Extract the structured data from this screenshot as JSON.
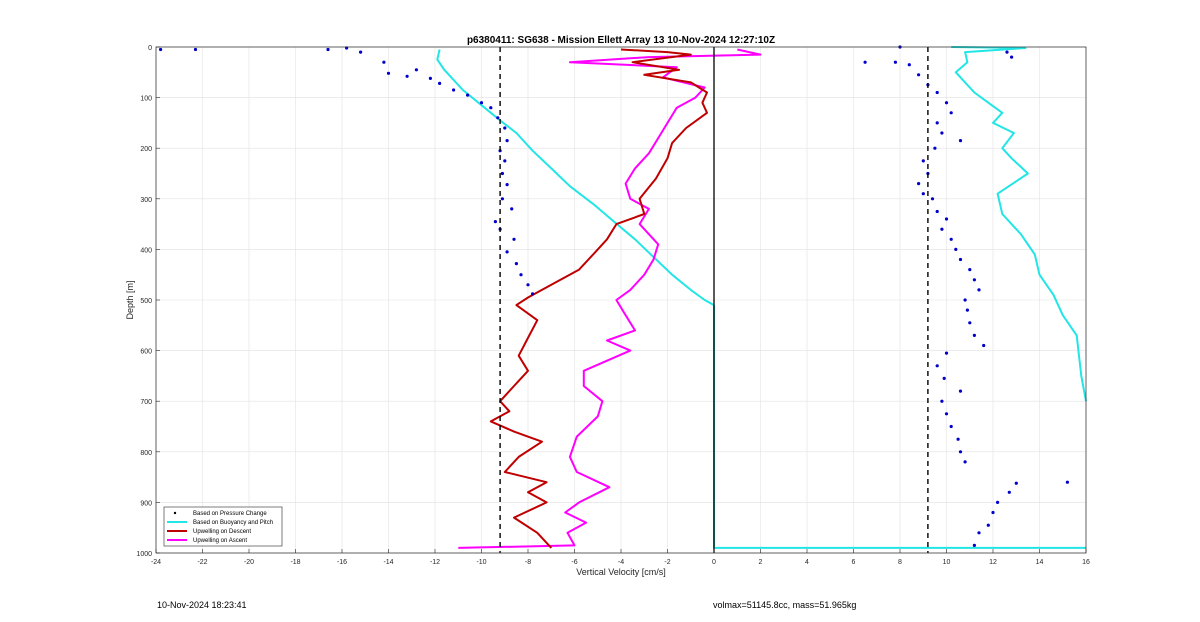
{
  "chart_data": {
    "type": "scatter",
    "title": "p6380411: SG638 - Mission Ellett Array 13 10-Nov-2024 12:27:10Z",
    "xlabel": "Vertical Velocity [cm/s]",
    "ylabel": "Depth [m]",
    "xlim": [
      -24,
      16
    ],
    "ylim": [
      0,
      1000
    ],
    "y_reversed": true,
    "grid": true,
    "xticks": [
      -24,
      -22,
      -20,
      -18,
      -16,
      -14,
      -12,
      -10,
      -8,
      -6,
      -4,
      -2,
      0,
      2,
      4,
      6,
      8,
      10,
      12,
      14,
      16
    ],
    "yticks": [
      0,
      100,
      200,
      300,
      400,
      500,
      600,
      700,
      800,
      900,
      1000
    ],
    "legend_position": "bottom-left",
    "legend": [
      {
        "label": "Based on Pressure Change",
        "color": "#000000",
        "style": "dot"
      },
      {
        "label": "Based on Buoyancy and Pitch",
        "color": "#22e5e5",
        "style": "line"
      },
      {
        "label": "Upwelling on Descent",
        "color": "#c00000",
        "style": "line"
      },
      {
        "label": "Upwelling on Ascent",
        "color": "#ff00ff",
        "style": "line"
      }
    ],
    "reference_lines": {
      "dashed_x": [
        -9.2,
        9.2
      ],
      "solid_x": [
        0
      ]
    },
    "series": [
      {
        "key": "pressure_descent",
        "color": "#0000cc",
        "style": "points",
        "points": [
          [
            -23.8,
            5
          ],
          [
            -22.3,
            5
          ],
          [
            -16.6,
            5
          ],
          [
            -15.8,
            2
          ],
          [
            -15.2,
            10
          ],
          [
            -14.2,
            30
          ],
          [
            -14.0,
            52
          ],
          [
            -13.2,
            58
          ],
          [
            -12.8,
            45
          ],
          [
            -12.2,
            62
          ],
          [
            -11.8,
            72
          ],
          [
            -11.2,
            85
          ],
          [
            -10.6,
            95
          ],
          [
            -10.0,
            110
          ],
          [
            -9.6,
            120
          ],
          [
            -9.3,
            140
          ],
          [
            -9.0,
            160
          ],
          [
            -8.9,
            185
          ],
          [
            -9.2,
            205
          ],
          [
            -9.0,
            225
          ],
          [
            -9.1,
            250
          ],
          [
            -8.9,
            272
          ],
          [
            -9.1,
            300
          ],
          [
            -8.7,
            320
          ],
          [
            -9.4,
            345
          ],
          [
            -9.2,
            360
          ],
          [
            -8.6,
            380
          ],
          [
            -8.9,
            405
          ],
          [
            -8.5,
            428
          ],
          [
            -8.3,
            450
          ],
          [
            -8.0,
            470
          ],
          [
            -7.8,
            488
          ]
        ]
      },
      {
        "key": "pressure_ascent",
        "color": "#0000cc",
        "style": "points",
        "points": [
          [
            15.2,
            860
          ],
          [
            13.0,
            862
          ],
          [
            12.7,
            880
          ],
          [
            12.2,
            900
          ],
          [
            12.0,
            920
          ],
          [
            11.8,
            945
          ],
          [
            11.4,
            960
          ],
          [
            11.2,
            985
          ],
          [
            10.8,
            820
          ],
          [
            10.6,
            800
          ],
          [
            10.5,
            775
          ],
          [
            10.2,
            750
          ],
          [
            10.0,
            725
          ],
          [
            9.8,
            700
          ],
          [
            10.6,
            680
          ],
          [
            9.9,
            655
          ],
          [
            9.6,
            630
          ],
          [
            10.0,
            605
          ],
          [
            11.6,
            590
          ],
          [
            11.2,
            570
          ],
          [
            11.0,
            545
          ],
          [
            10.9,
            520
          ],
          [
            10.8,
            500
          ],
          [
            11.4,
            480
          ],
          [
            11.2,
            460
          ],
          [
            11.0,
            440
          ],
          [
            10.6,
            420
          ],
          [
            10.4,
            400
          ],
          [
            10.2,
            380
          ],
          [
            9.8,
            360
          ],
          [
            10.0,
            340
          ],
          [
            9.6,
            325
          ],
          [
            9.4,
            300
          ],
          [
            9.0,
            290
          ],
          [
            8.8,
            270
          ],
          [
            9.2,
            250
          ],
          [
            9.0,
            225
          ],
          [
            9.5,
            200
          ],
          [
            10.6,
            185
          ],
          [
            9.8,
            170
          ],
          [
            9.6,
            150
          ],
          [
            10.2,
            130
          ],
          [
            10.0,
            110
          ],
          [
            9.6,
            90
          ],
          [
            9.2,
            75
          ],
          [
            8.8,
            55
          ],
          [
            8.4,
            35
          ],
          [
            7.8,
            30
          ],
          [
            6.5,
            30
          ],
          [
            8.0,
            0
          ],
          [
            12.6,
            10
          ],
          [
            12.8,
            20
          ]
        ]
      },
      {
        "key": "buoyancy_pitch_descent",
        "color": "#22e5e5",
        "style": "line",
        "points": [
          [
            -11.8,
            5
          ],
          [
            -11.9,
            25
          ],
          [
            -11.6,
            45
          ],
          [
            -11.2,
            65
          ],
          [
            -10.8,
            85
          ],
          [
            -10.4,
            100
          ],
          [
            -10.0,
            115
          ],
          [
            -9.6,
            130
          ],
          [
            -9.2,
            145
          ],
          [
            -8.5,
            170
          ],
          [
            -7.8,
            205
          ],
          [
            -7.0,
            240
          ],
          [
            -6.2,
            275
          ],
          [
            -5.2,
            310
          ],
          [
            -4.3,
            345
          ],
          [
            -3.4,
            380
          ],
          [
            -2.6,
            415
          ],
          [
            -1.8,
            450
          ],
          [
            -1.0,
            480
          ],
          [
            -0.4,
            500
          ],
          [
            0.0,
            510
          ],
          [
            0.0,
            990
          ],
          [
            16.0,
            990
          ]
        ]
      },
      {
        "key": "buoyancy_pitch_ascent",
        "color": "#22e5e5",
        "style": "line",
        "points": [
          [
            10.2,
            0
          ],
          [
            13.4,
            2
          ],
          [
            10.8,
            10
          ],
          [
            10.9,
            30
          ],
          [
            10.4,
            50
          ],
          [
            10.8,
            70
          ],
          [
            11.2,
            90
          ],
          [
            11.8,
            110
          ],
          [
            12.4,
            130
          ],
          [
            12.0,
            150
          ],
          [
            12.9,
            170
          ],
          [
            12.4,
            200
          ],
          [
            12.8,
            220
          ],
          [
            13.5,
            250
          ],
          [
            12.2,
            290
          ],
          [
            12.4,
            330
          ],
          [
            13.2,
            370
          ],
          [
            13.8,
            410
          ],
          [
            14.0,
            450
          ],
          [
            14.6,
            490
          ],
          [
            15.0,
            530
          ],
          [
            15.6,
            570
          ],
          [
            15.7,
            610
          ],
          [
            15.8,
            650
          ],
          [
            16.0,
            700
          ]
        ]
      },
      {
        "key": "upwelling_descent",
        "color": "#c00000",
        "style": "line",
        "points": [
          [
            -4.0,
            5
          ],
          [
            -2.0,
            10
          ],
          [
            -1.0,
            15
          ],
          [
            -3.5,
            30
          ],
          [
            -1.5,
            45
          ],
          [
            -3.0,
            55
          ],
          [
            -1.0,
            70
          ],
          [
            -0.3,
            90
          ],
          [
            -0.5,
            110
          ],
          [
            -0.3,
            130
          ],
          [
            -1.2,
            160
          ],
          [
            -1.8,
            190
          ],
          [
            -2.0,
            220
          ],
          [
            -2.5,
            260
          ],
          [
            -3.2,
            300
          ],
          [
            -3.0,
            330
          ],
          [
            -4.2,
            350
          ],
          [
            -4.6,
            380
          ],
          [
            -5.2,
            410
          ],
          [
            -5.8,
            440
          ],
          [
            -7.0,
            470
          ],
          [
            -8.0,
            495
          ],
          [
            -8.5,
            510
          ],
          [
            -7.6,
            540
          ],
          [
            -8.0,
            575
          ],
          [
            -8.4,
            610
          ],
          [
            -8.0,
            640
          ],
          [
            -8.6,
            670
          ],
          [
            -9.2,
            700
          ],
          [
            -8.8,
            720
          ],
          [
            -9.6,
            740
          ],
          [
            -8.6,
            760
          ],
          [
            -7.4,
            780
          ],
          [
            -8.4,
            810
          ],
          [
            -9.0,
            840
          ],
          [
            -7.2,
            860
          ],
          [
            -8.0,
            880
          ],
          [
            -7.2,
            900
          ],
          [
            -8.6,
            930
          ],
          [
            -7.6,
            960
          ],
          [
            -7.0,
            990
          ]
        ]
      },
      {
        "key": "upwelling_ascent",
        "color": "#ff00ff",
        "style": "line",
        "points": [
          [
            -11.0,
            990
          ],
          [
            -6.0,
            985
          ],
          [
            -6.3,
            960
          ],
          [
            -5.5,
            940
          ],
          [
            -6.4,
            920
          ],
          [
            -5.8,
            900
          ],
          [
            -4.5,
            870
          ],
          [
            -5.9,
            840
          ],
          [
            -6.2,
            810
          ],
          [
            -5.9,
            770
          ],
          [
            -5.0,
            730
          ],
          [
            -4.8,
            700
          ],
          [
            -5.6,
            670
          ],
          [
            -5.6,
            640
          ],
          [
            -4.6,
            620
          ],
          [
            -3.6,
            600
          ],
          [
            -4.6,
            580
          ],
          [
            -3.4,
            560
          ],
          [
            -3.8,
            530
          ],
          [
            -4.2,
            500
          ],
          [
            -3.6,
            480
          ],
          [
            -3.0,
            450
          ],
          [
            -2.6,
            420
          ],
          [
            -2.4,
            390
          ],
          [
            -3.2,
            350
          ],
          [
            -2.8,
            320
          ],
          [
            -3.6,
            300
          ],
          [
            -3.8,
            270
          ],
          [
            -3.4,
            240
          ],
          [
            -2.8,
            210
          ],
          [
            -2.4,
            180
          ],
          [
            -2.0,
            150
          ],
          [
            -1.6,
            120
          ],
          [
            -0.8,
            100
          ],
          [
            -0.4,
            80
          ],
          [
            -2.2,
            60
          ],
          [
            -1.6,
            40
          ],
          [
            -6.2,
            30
          ],
          [
            -2.8,
            20
          ],
          [
            2.0,
            15
          ],
          [
            1.0,
            5
          ]
        ]
      }
    ]
  },
  "footer": {
    "timestamp": "10-Nov-2024 18:23:41",
    "vol_mass": "volmax=51145.8cc, mass=51.965kg"
  }
}
